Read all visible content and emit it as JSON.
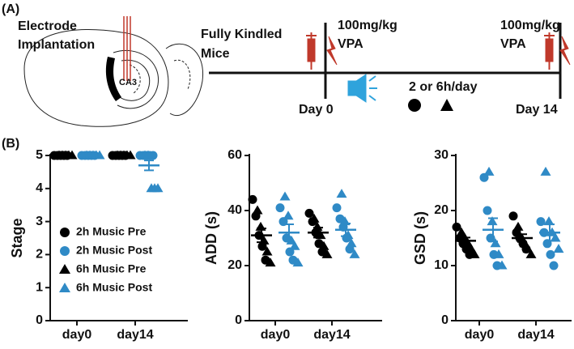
{
  "panel_a": {
    "label": "(A)",
    "implant": [
      "Electrode",
      "Implantation"
    ],
    "region": "CA3",
    "group": [
      "Fully Kindled",
      "Mice"
    ],
    "dose_start": [
      "100mg/kg",
      "VPA"
    ],
    "day_start": "Day 0",
    "schedule": "2 or 6h/day",
    "dose_end": [
      "100mg/kg",
      "VPA"
    ],
    "day_end": "Day 14"
  },
  "panel_b_label": "(B)",
  "chart_data": [
    {
      "type": "scatter",
      "ylabel": "Stage",
      "categories": [
        "day0",
        "day14"
      ],
      "ylim": [
        0,
        5
      ],
      "yticks": [
        0,
        1,
        2,
        3,
        4,
        5
      ],
      "legend": "lower left",
      "series": [
        {
          "name": "2h Music Pre",
          "color": "#000000",
          "marker": "circle",
          "values": [
            [
              5,
              5,
              5,
              5,
              5
            ],
            [
              5,
              5,
              5,
              5,
              5
            ]
          ]
        },
        {
          "name": "2h Music Post",
          "color": "#2f8ac6",
          "marker": "circle",
          "values": [
            [
              5,
              5,
              5,
              5,
              5
            ],
            [
              5,
              5,
              5,
              5,
              5
            ]
          ]
        },
        {
          "name": "6h Music Pre",
          "color": "#000000",
          "marker": "triangle",
          "values": [
            [
              5,
              5,
              5,
              5,
              5
            ],
            [
              5,
              5,
              5,
              5,
              5
            ]
          ]
        },
        {
          "name": "6h Music Post",
          "color": "#2f8ac6",
          "marker": "triangle",
          "values": [
            [
              5,
              5,
              5,
              5,
              5
            ],
            [
              5,
              5,
              4,
              4,
              4
            ]
          ]
        }
      ],
      "means": [
        [
          5,
          5
        ],
        [
          5,
          4.7
        ]
      ],
      "sems": [
        [
          0,
          0
        ],
        [
          0,
          0.15
        ]
      ]
    },
    {
      "type": "scatter",
      "ylabel": "ADD (s)",
      "categories": [
        "day0",
        "day14"
      ],
      "ylim": [
        0,
        60
      ],
      "yticks": [
        0,
        20,
        40,
        60
      ],
      "series": [
        {
          "name": "2h Music Pre",
          "color": "#000000",
          "marker": "circle",
          "values": [
            [
              44,
              38,
              31,
              27,
              22
            ],
            [
              39,
              36,
              32,
              28,
              25
            ]
          ]
        },
        {
          "name": "2h Music Post",
          "color": "#2f8ac6",
          "marker": "circle",
          "values": [
            [
              41,
              36,
              30,
              25,
              22
            ],
            [
              41,
              37,
              34,
              30,
              26
            ]
          ]
        },
        {
          "name": "6h Music Pre",
          "color": "#000000",
          "marker": "triangle",
          "values": [
            [
              40,
              34,
              29,
              25,
              21
            ],
            [
              37,
              34,
              31,
              27,
              24
            ]
          ]
        },
        {
          "name": "6h Music Post",
          "color": "#2f8ac6",
          "marker": "triangle",
          "values": [
            [
              45,
              38,
              29,
              27,
              21
            ],
            [
              46,
              36,
              31,
              28,
              24
            ]
          ]
        }
      ],
      "means": [
        [
          31,
          32
        ],
        [
          32,
          33
        ]
      ],
      "sems": [
        [
          2.5,
          3
        ],
        [
          1.8,
          2.3
        ]
      ]
    },
    {
      "type": "scatter",
      "ylabel": "GSD (s)",
      "categories": [
        "day0",
        "day14"
      ],
      "ylim": [
        0,
        30
      ],
      "yticks": [
        0,
        10,
        20,
        30
      ],
      "series": [
        {
          "name": "2h Music Pre",
          "color": "#000000",
          "marker": "circle",
          "values": [
            [
              17,
              15,
              14,
              13,
              12
            ],
            [
              19,
              16,
              15,
              14,
              13
            ]
          ]
        },
        {
          "name": "2h Music Post",
          "color": "#2f8ac6",
          "marker": "circle",
          "values": [
            [
              26,
              20,
              15,
              12,
              10
            ],
            [
              18,
              16,
              14,
              12,
              10
            ]
          ]
        },
        {
          "name": "6h Music Pre",
          "color": "#000000",
          "marker": "triangle",
          "values": [
            [
              16,
              15,
              14,
              13,
              12
            ],
            [
              17,
              15,
              14,
              13,
              12
            ]
          ]
        },
        {
          "name": "6h Music Post",
          "color": "#2f8ac6",
          "marker": "triangle",
          "values": [
            [
              27,
              18,
              14,
              12,
              10
            ],
            [
              27,
              18,
              16,
              15,
              13
            ]
          ]
        }
      ],
      "means": [
        [
          14.5,
          16.5
        ],
        [
          15,
          16
        ]
      ],
      "sems": [
        [
          0.6,
          2.1
        ],
        [
          0.7,
          1.5
        ]
      ]
    }
  ]
}
